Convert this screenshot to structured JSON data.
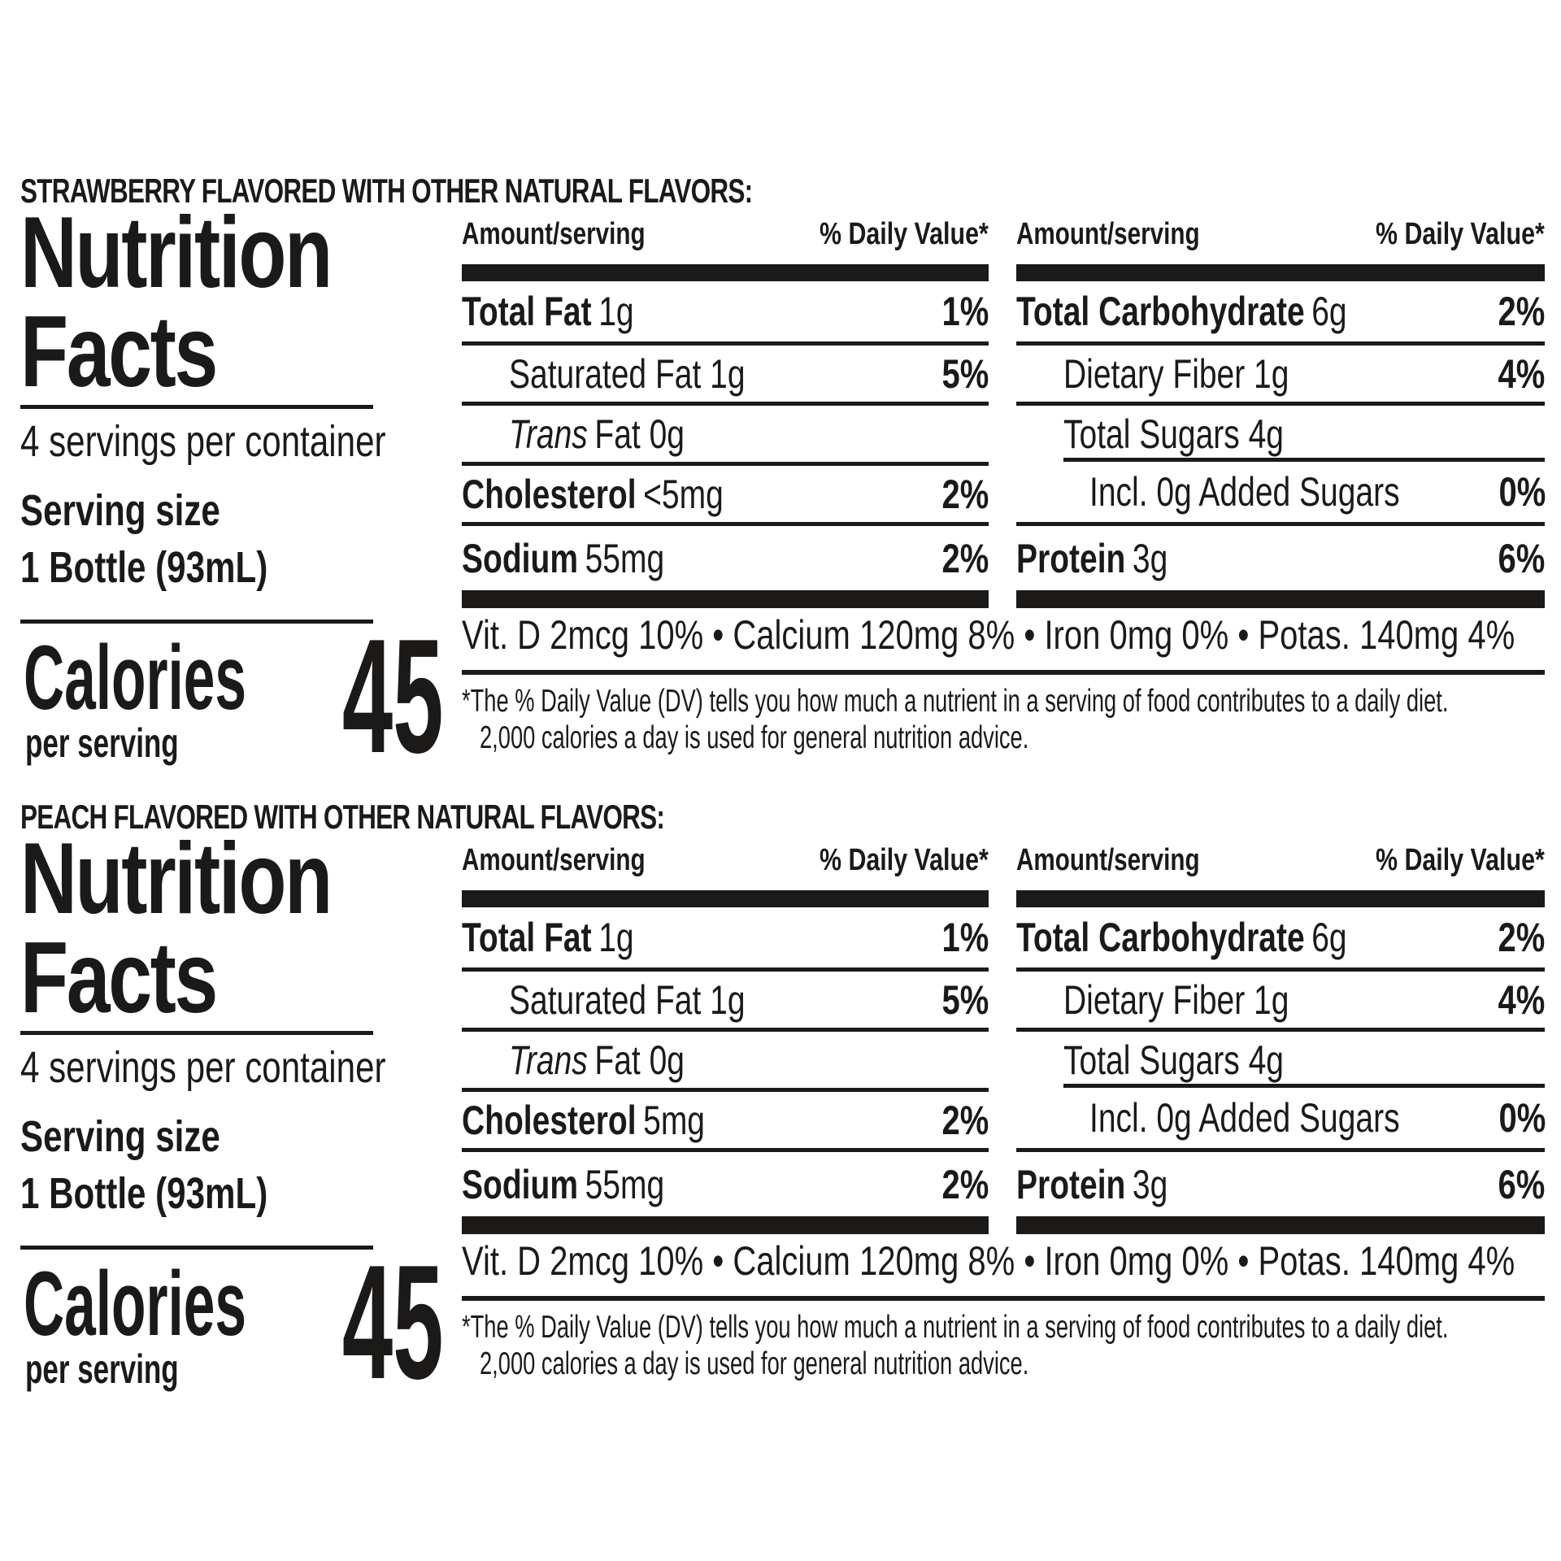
{
  "colors": {
    "ink": "#1c1a19",
    "background": "#ffffff"
  },
  "labels": [
    {
      "flavor_header": "STRAWBERRY FLAVORED WITH OTHER NATURAL FLAVORS:",
      "title_line1": "Nutrition",
      "title_line2": "Facts",
      "servings_per_container": "4 servings per container",
      "serving_size_label": "Serving size",
      "serving_size_value": "1 Bottle (93mL)",
      "calories_label": "Calories",
      "calories_sublabel": "per serving",
      "calories_value": "45",
      "col1": {
        "amount_header": "Amount/serving",
        "dv_header": "% Daily Value*",
        "rows": [
          {
            "bold": "Total Fat",
            "rest": "1g",
            "dv": "1%"
          },
          {
            "rest": "Saturated Fat 1g",
            "dv": "5%"
          },
          {
            "italic": "Trans",
            "rest": "Fat 0g"
          },
          {
            "bold": "Cholesterol",
            "rest": "<5mg",
            "dv": "2%"
          },
          {
            "bold": "Sodium",
            "rest": "55mg",
            "dv": "2%"
          }
        ]
      },
      "col2": {
        "amount_header": "Amount/serving",
        "dv_header": "% Daily Value*",
        "rows": [
          {
            "bold": "Total Carbohydrate",
            "rest": "6g",
            "dv": "2%"
          },
          {
            "rest": "Dietary Fiber 1g",
            "dv": "4%"
          },
          {
            "rest": "Total Sugars 4g"
          },
          {
            "rest": "Incl. 0g Added Sugars",
            "dv": "0%"
          },
          {
            "bold": "Protein",
            "rest": "3g",
            "dv": "6%"
          }
        ]
      },
      "micronutrients": "Vit. D 2mcg 10% • Calcium 120mg 8% • Iron 0mg 0% • Potas. 140mg 4%",
      "footnote_line1": "*The % Daily Value (DV) tells you how much a nutrient in a serving of food contributes to a daily diet.",
      "footnote_line2": "2,000 calories a day is used for general nutrition advice."
    },
    {
      "flavor_header": "PEACH FLAVORED WITH OTHER NATURAL FLAVORS:",
      "title_line1": "Nutrition",
      "title_line2": "Facts",
      "servings_per_container": "4 servings per container",
      "serving_size_label": "Serving size",
      "serving_size_value": "1 Bottle (93mL)",
      "calories_label": "Calories",
      "calories_sublabel": "per serving",
      "calories_value": "45",
      "col1": {
        "amount_header": "Amount/serving",
        "dv_header": "% Daily Value*",
        "rows": [
          {
            "bold": "Total Fat",
            "rest": "1g",
            "dv": "1%"
          },
          {
            "rest": "Saturated Fat 1g",
            "dv": "5%"
          },
          {
            "italic": "Trans",
            "rest": "Fat 0g"
          },
          {
            "bold": "Cholesterol",
            "rest": "5mg",
            "dv": "2%"
          },
          {
            "bold": "Sodium",
            "rest": "55mg",
            "dv": "2%"
          }
        ]
      },
      "col2": {
        "amount_header": "Amount/serving",
        "dv_header": "% Daily Value*",
        "rows": [
          {
            "bold": "Total Carbohydrate",
            "rest": "6g",
            "dv": "2%"
          },
          {
            "rest": "Dietary Fiber 1g",
            "dv": "4%"
          },
          {
            "rest": "Total Sugars 4g"
          },
          {
            "rest": "Incl. 0g Added Sugars",
            "dv": "0%"
          },
          {
            "bold": "Protein",
            "rest": "3g",
            "dv": "6%"
          }
        ]
      },
      "micronutrients": "Vit. D 2mcg 10% • Calcium 120mg 8% • Iron 0mg 0% • Potas. 140mg 4%",
      "footnote_line1": "*The % Daily Value (DV) tells you how much a nutrient in a serving of food contributes to a daily diet.",
      "footnote_line2": "2,000 calories a day is used for general nutrition advice."
    }
  ]
}
